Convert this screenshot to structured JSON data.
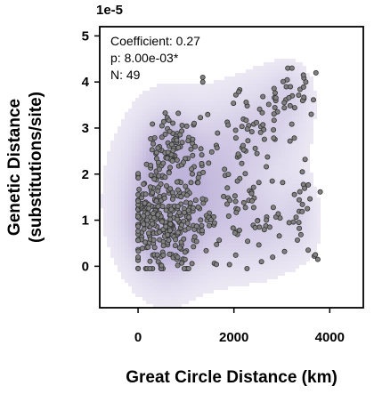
{
  "chart_data": {
    "type": "scatter",
    "xlabel": "Great Circle Distance (km)",
    "ylabel_line1": "Genetic Distance",
    "ylabel_line2": "(substitutions/site)",
    "y_offset_label": "1e-5",
    "x_ticks": [
      0,
      2000,
      4000
    ],
    "x_tick_labels": [
      "0",
      "2000",
      "4000"
    ],
    "y_ticks": [
      0,
      1,
      2,
      3,
      4,
      5
    ],
    "y_tick_labels": [
      "0",
      "1",
      "2",
      "3",
      "4",
      "5"
    ],
    "xlim": [
      -800,
      4700
    ],
    "ylim": [
      -0.9,
      5.2
    ],
    "y_scale": 1e-05,
    "grid": false,
    "annotations": {
      "coefficient": "Coefficient: 0.27",
      "pvalue": "p: 8.00e-03*",
      "n": "N: 49"
    },
    "colors": {
      "kde_fill": "#8470b8",
      "point_fill": "#808080",
      "point_stroke": "#333333"
    },
    "clusters": [
      {
        "x": 500,
        "y": 0.9,
        "sx": 350,
        "sy": 0.55,
        "n": 200
      },
      {
        "x": 700,
        "y": 2.5,
        "sx": 250,
        "sy": 0.35,
        "n": 85
      },
      {
        "x": 250,
        "y": 1.4,
        "sx": 180,
        "sy": 0.55,
        "n": 60
      },
      {
        "x": 1100,
        "y": 1.0,
        "sx": 300,
        "sy": 0.55,
        "n": 60
      },
      {
        "x": 2700,
        "y": 3.0,
        "sx": 450,
        "sy": 0.45,
        "n": 45
      },
      {
        "x": 2300,
        "y": 1.1,
        "sx": 600,
        "sy": 0.55,
        "n": 70
      },
      {
        "x": 3200,
        "y": 3.7,
        "sx": 250,
        "sy": 0.35,
        "n": 25
      },
      {
        "x": 3400,
        "y": 1.2,
        "sx": 150,
        "sy": 0.5,
        "n": 15
      },
      {
        "x": 1500,
        "y": 2.6,
        "sx": 500,
        "sy": 0.5,
        "n": 25
      }
    ],
    "extra_points": [
      {
        "x": 1350,
        "y": 4.1
      },
      {
        "x": 1350,
        "y": 4.0
      },
      {
        "x": 3550,
        "y": 0.35
      },
      {
        "x": 3700,
        "y": 0.25
      },
      {
        "x": 3750,
        "y": 0.15
      },
      {
        "x": 3450,
        "y": 4.15
      },
      {
        "x": 3500,
        "y": 4.0
      }
    ],
    "kde_regions": [
      {
        "x": 1200,
        "y": 1.6,
        "sx": 1000,
        "sy": 1.1,
        "w": 1.0
      },
      {
        "x": 500,
        "y": 1.5,
        "sx": 450,
        "sy": 1.1,
        "w": 1.2
      },
      {
        "x": 600,
        "y": 0.8,
        "sx": 500,
        "sy": 0.6,
        "w": 1.0
      },
      {
        "x": 700,
        "y": 2.5,
        "sx": 300,
        "sy": 0.45,
        "w": 0.9
      },
      {
        "x": 2700,
        "y": 3.1,
        "sx": 550,
        "sy": 0.7,
        "w": 0.7
      },
      {
        "x": 3150,
        "y": 3.8,
        "sx": 300,
        "sy": 0.4,
        "w": 0.5
      },
      {
        "x": 2600,
        "y": 0.8,
        "sx": 700,
        "sy": 0.6,
        "w": 0.6
      },
      {
        "x": 3350,
        "y": 1.2,
        "sx": 220,
        "sy": 0.5,
        "w": 0.4
      },
      {
        "x": 1700,
        "y": 2.4,
        "sx": 500,
        "sy": 0.8,
        "w": 0.4
      }
    ]
  }
}
